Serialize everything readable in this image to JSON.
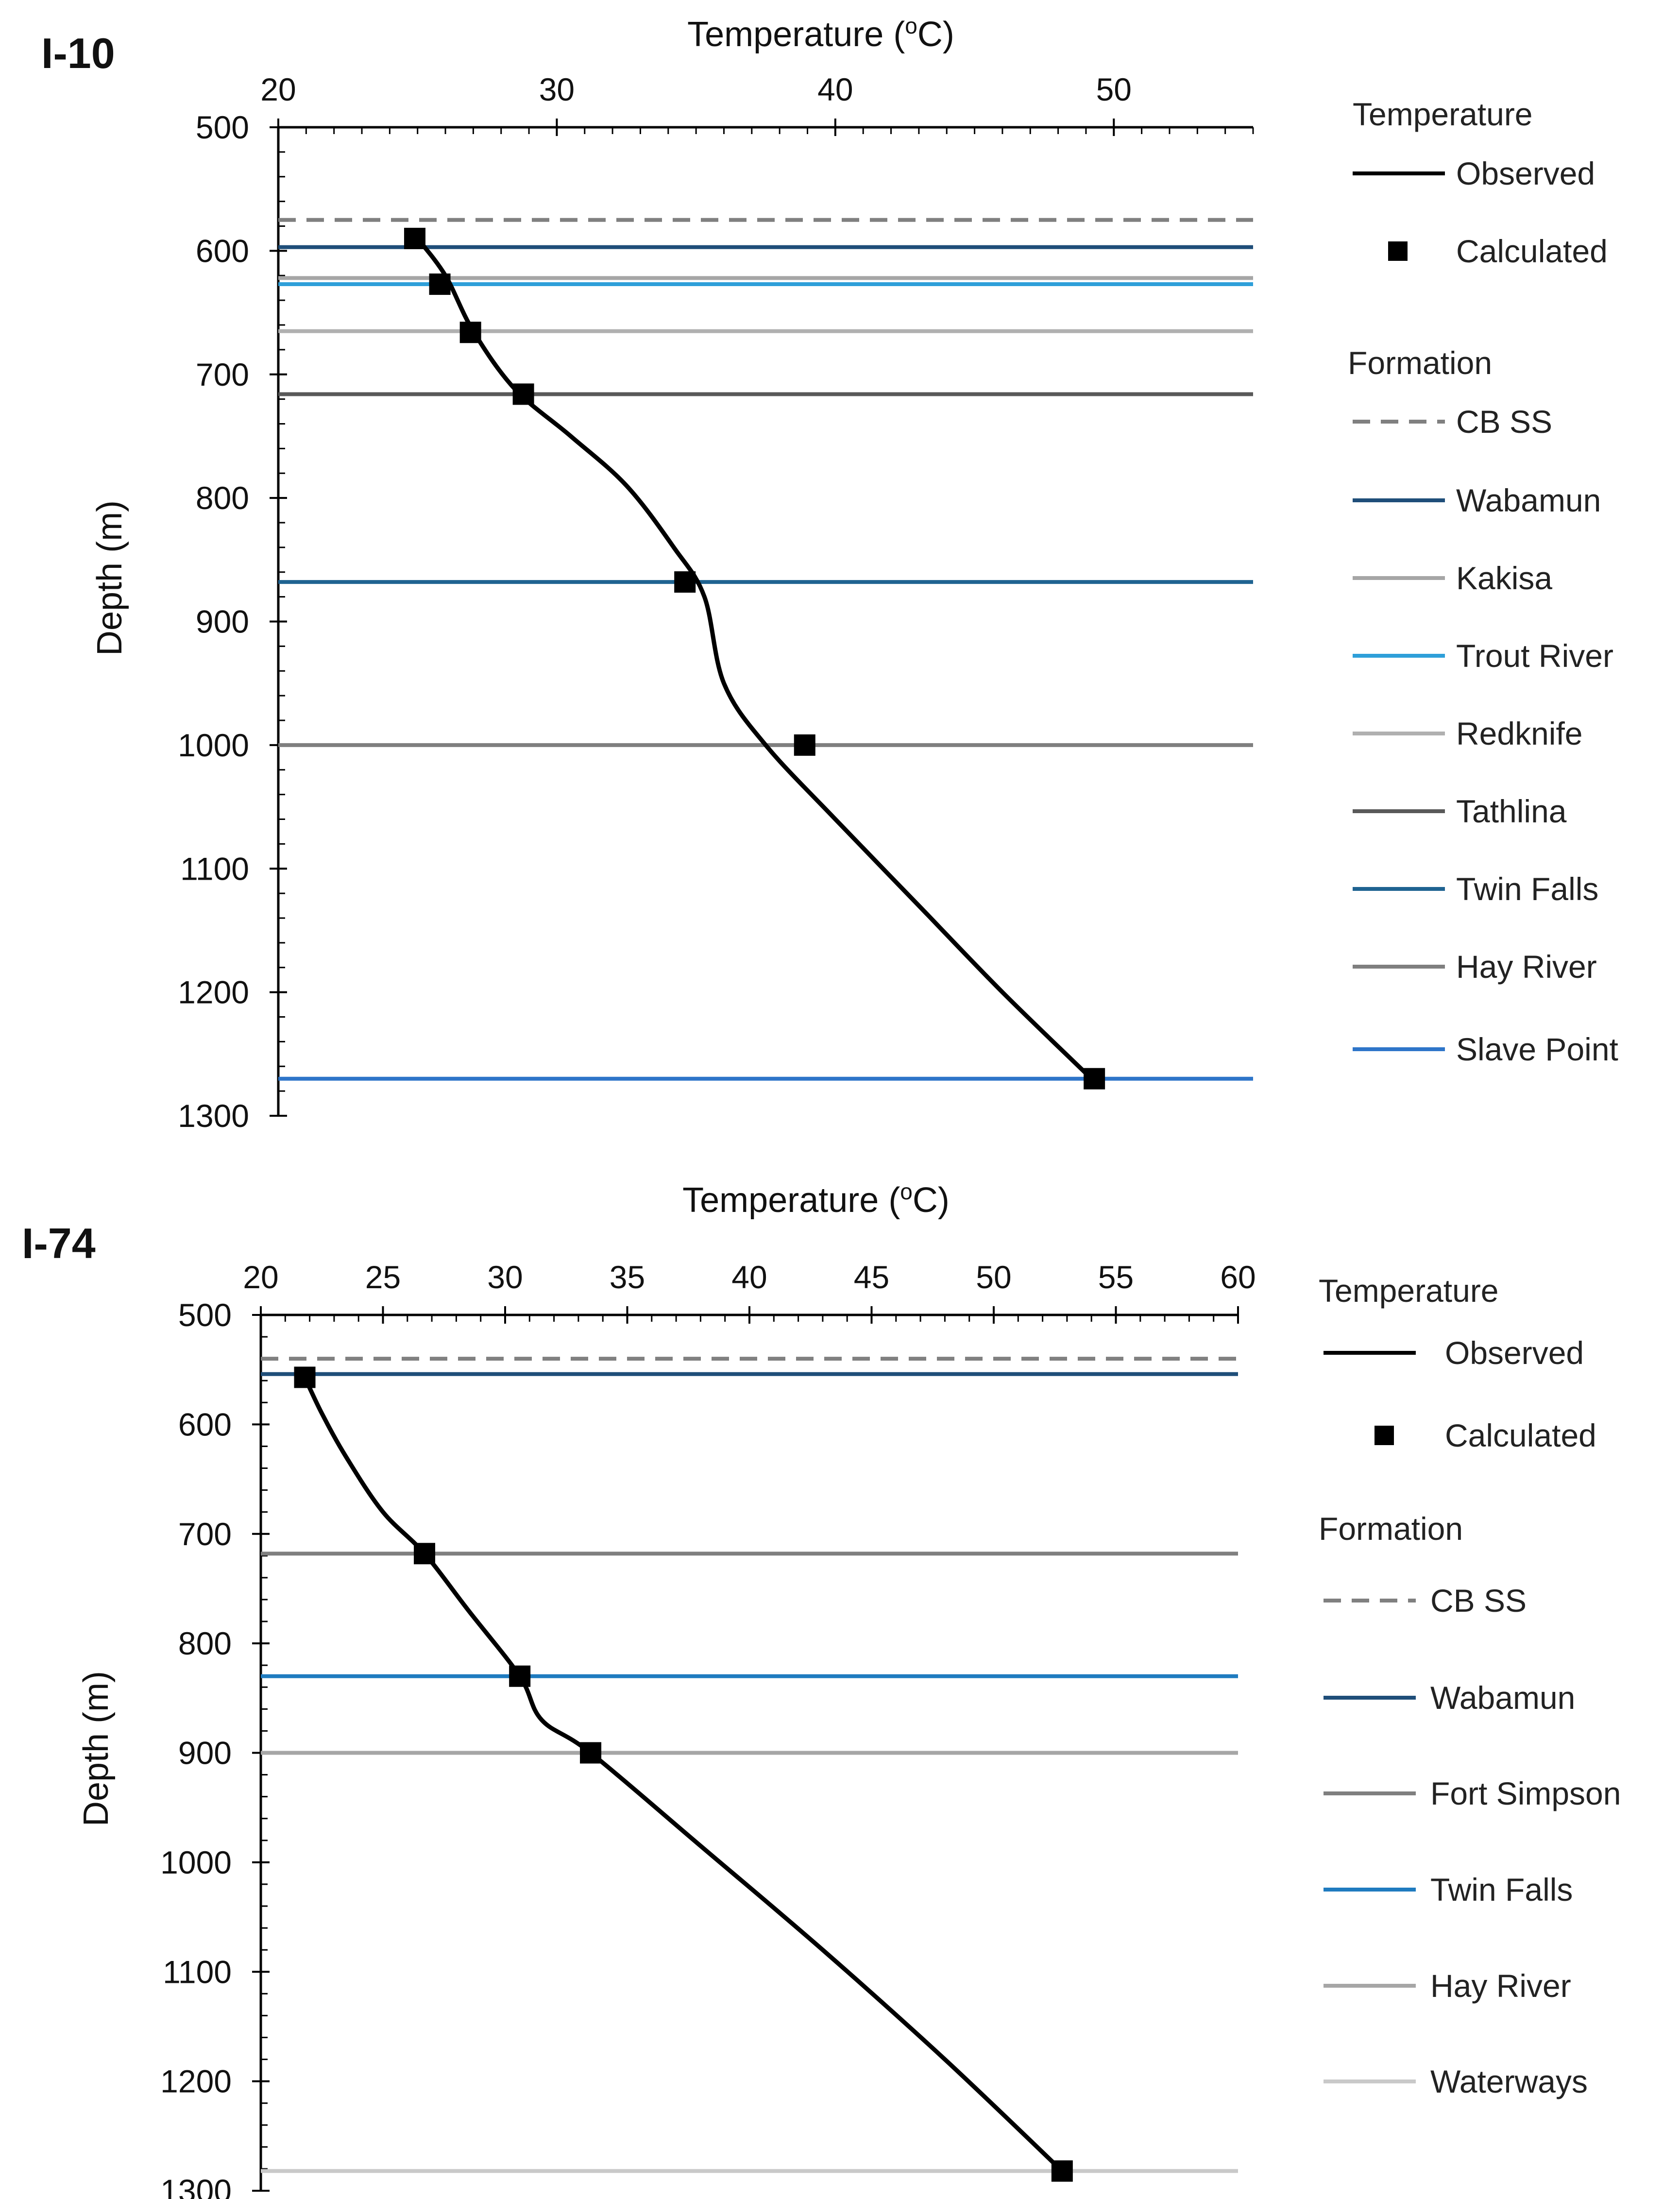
{
  "chart_data": [
    {
      "id": "i10",
      "type": "line",
      "panel_label": "I-10",
      "title": "",
      "xlabel_parts": [
        "Temperature (",
        "o",
        "C)"
      ],
      "ylabel": "Depth (m)",
      "xlim": [
        20,
        55
      ],
      "ylim": [
        500,
        1300
      ],
      "y_inverted": true,
      "x_axis_position": "top",
      "xticks": [
        20,
        30,
        40,
        50
      ],
      "x_minor_step": 1,
      "yticks": [
        500,
        600,
        700,
        800,
        900,
        1000,
        1100,
        1200,
        1300
      ],
      "y_minor_step": 20,
      "legend_temperature_heading": "Temperature",
      "legend_formation_heading": "Formation",
      "observed": {
        "name": "Observed",
        "color": "#000000",
        "temperature": [
          25,
          26,
          27,
          28.5,
          30.5,
          32.5,
          34.2,
          35.3,
          36,
          37.5,
          40,
          43,
          46,
          49.2
        ],
        "depth": [
          590,
          620,
          665,
          712,
          750,
          790,
          840,
          880,
          950,
          1000,
          1060,
          1130,
          1200,
          1270
        ]
      },
      "calculated": {
        "name": "Calculated",
        "color": "#000000",
        "temperature": [
          24.9,
          25.8,
          26.9,
          28.8,
          34.6,
          38.9,
          49.3
        ],
        "depth": [
          590,
          627,
          666,
          716,
          868,
          1000,
          1270
        ]
      },
      "formations": [
        {
          "name": "CB SS",
          "depth": 575,
          "color": "#808080",
          "dashed": true
        },
        {
          "name": "Wabamun",
          "depth": 597,
          "color": "#1f4e79",
          "dashed": false
        },
        {
          "name": "Kakisa",
          "depth": 622,
          "color": "#a6a6a6",
          "dashed": false
        },
        {
          "name": "Trout River",
          "depth": 627,
          "color": "#2e9fd9",
          "dashed": false
        },
        {
          "name": "Redknife",
          "depth": 665,
          "color": "#b0b0b0",
          "dashed": false
        },
        {
          "name": "Tathlina",
          "depth": 716,
          "color": "#595959",
          "dashed": false
        },
        {
          "name": "Twin Falls",
          "depth": 868,
          "color": "#1f6391",
          "dashed": false
        },
        {
          "name": "Hay River",
          "depth": 1000,
          "color": "#7f7f7f",
          "dashed": false
        },
        {
          "name": "Slave Point",
          "depth": 1270,
          "color": "#2e75c9",
          "dashed": false
        }
      ]
    },
    {
      "id": "i74",
      "type": "line",
      "panel_label": "I-74",
      "title": "",
      "xlabel_parts": [
        "Temperature (",
        "o",
        "C)"
      ],
      "ylabel": "Depth (m)",
      "xlim": [
        20,
        60
      ],
      "ylim": [
        500,
        1300
      ],
      "y_inverted": true,
      "x_axis_position": "top",
      "xticks": [
        20,
        25,
        30,
        35,
        40,
        45,
        50,
        55,
        60
      ],
      "x_minor_step": 1,
      "yticks": [
        500,
        600,
        700,
        800,
        900,
        1000,
        1100,
        1200,
        1300
      ],
      "y_minor_step": 20,
      "legend_temperature_heading": "Temperature",
      "legend_formation_heading": "Formation",
      "observed": {
        "name": "Observed",
        "color": "#000000",
        "temperature": [
          21.8,
          22.5,
          23.5,
          25,
          26.7,
          28.5,
          30.6,
          31.5,
          33.5,
          38,
          43,
          48,
          52.8
        ],
        "depth": [
          557,
          590,
          630,
          680,
          718,
          770,
          830,
          870,
          900,
          985,
          1080,
          1180,
          1282
        ]
      },
      "calculated": {
        "name": "Calculated",
        "color": "#000000",
        "temperature": [
          21.8,
          26.7,
          30.6,
          33.5,
          52.8
        ],
        "depth": [
          557,
          718,
          830,
          900,
          1282
        ]
      },
      "formations": [
        {
          "name": "CB SS",
          "depth": 540,
          "color": "#808080",
          "dashed": true
        },
        {
          "name": "Wabamun",
          "depth": 554,
          "color": "#1f4e79",
          "dashed": false
        },
        {
          "name": "Fort Simpson",
          "depth": 718,
          "color": "#7f7f7f",
          "dashed": false
        },
        {
          "name": "Twin Falls",
          "depth": 830,
          "color": "#1f7bbf",
          "dashed": false
        },
        {
          "name": "Hay River",
          "depth": 900,
          "color": "#a6a6a6",
          "dashed": false
        },
        {
          "name": "Waterways",
          "depth": 1282,
          "color": "#c9c9c9",
          "dashed": false
        }
      ]
    }
  ]
}
